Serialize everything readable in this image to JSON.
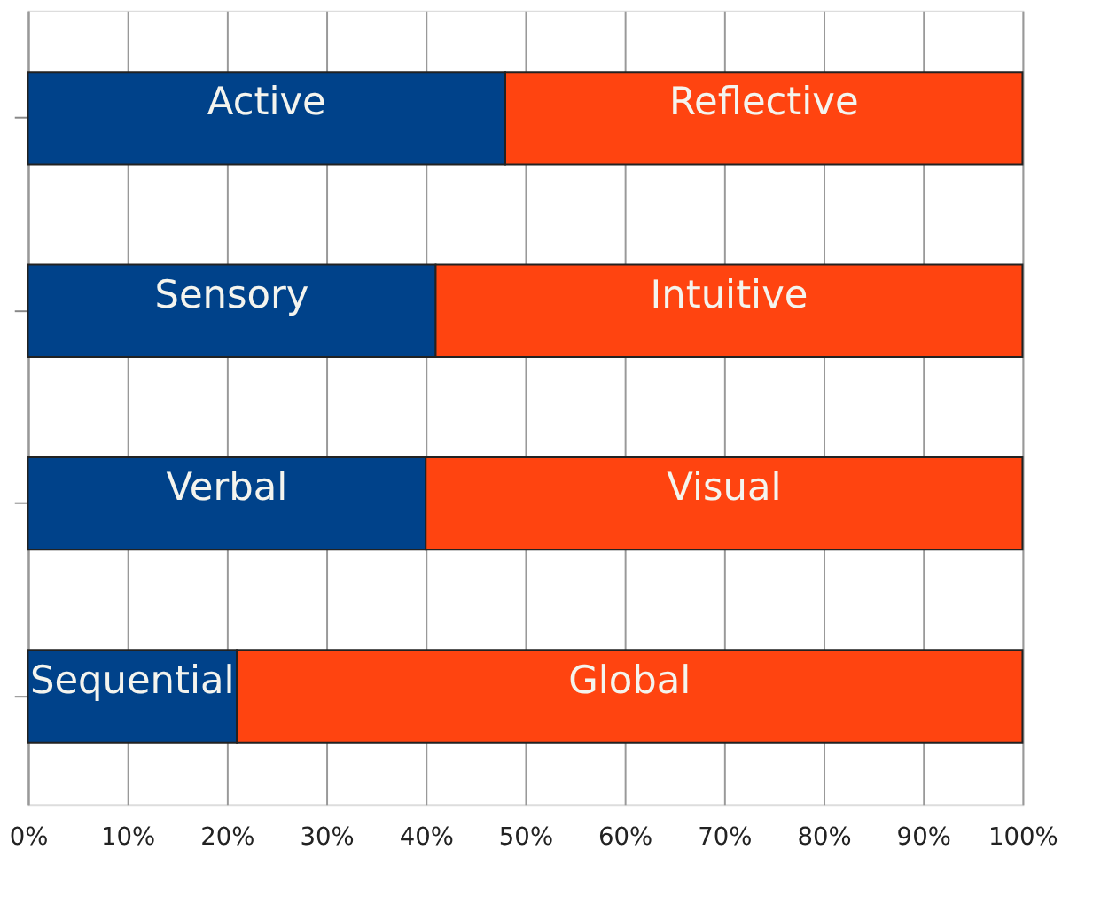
{
  "chart_data": {
    "type": "bar",
    "orientation": "horizontal",
    "stacked": true,
    "categories": [
      null,
      null,
      null,
      null
    ],
    "series": [
      {
        "color": "#00428a",
        "values": [
          48,
          41,
          40,
          21
        ],
        "value_labels": [
          "Active",
          "Sensory",
          "Verbal",
          "Sequential"
        ]
      },
      {
        "color": "#ff4410",
        "values": [
          52,
          59,
          60,
          79
        ],
        "value_labels": [
          "Reflective",
          "Intuitive",
          "Visual",
          "Global"
        ]
      }
    ],
    "xlim": [
      0,
      100
    ],
    "xticks": [
      {
        "value": 0,
        "label": "0%"
      },
      {
        "value": 10,
        "label": "10%"
      },
      {
        "value": 20,
        "label": "20%"
      },
      {
        "value": 30,
        "label": "30%"
      },
      {
        "value": 40,
        "label": "40%"
      },
      {
        "value": 50,
        "label": "50%"
      },
      {
        "value": 60,
        "label": "60%"
      },
      {
        "value": 70,
        "label": "70%"
      },
      {
        "value": 80,
        "label": "80%"
      },
      {
        "value": 90,
        "label": "90%"
      },
      {
        "value": 100,
        "label": "100%"
      }
    ],
    "grid": "x",
    "tick_labels": "x",
    "legend": false
  }
}
